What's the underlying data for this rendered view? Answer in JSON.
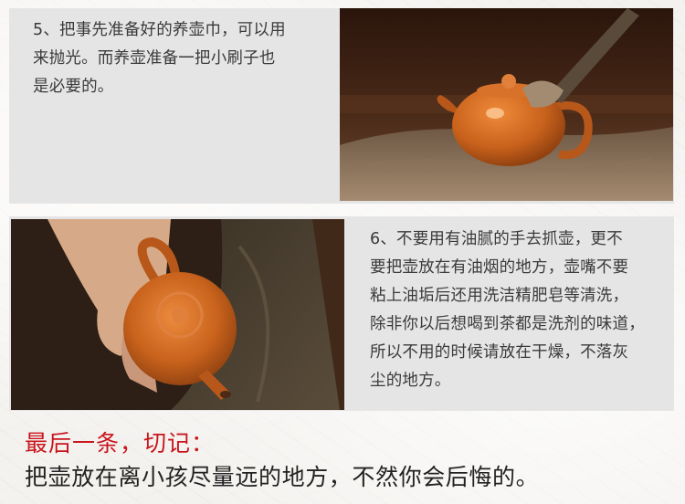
{
  "step5": {
    "lines": [
      "5、把事先准备好的养壶巾，可以用",
      "来抛光。而养壶准备一把小刷子也",
      "是必要的。"
    ]
  },
  "step6": {
    "lines": [
      "6、不要用有油腻的手去抓壶，更不",
      "要把壶放在有油烟的地方，壶嘴不要",
      "粘上油垢后还用洗洁精肥皂等清洗，",
      "除非你以后想喝到茶都是洗剂的味道，",
      "所以不用的时候请放在干燥，不落灰",
      "尘的地方。"
    ]
  },
  "final": {
    "title": "最后一条，切记：",
    "text": "把壶放在离小孩尽量远的地方，不然你会后悔的。"
  },
  "colors": {
    "accent_red": "#c8161d",
    "teapot_orange": "#c8621c",
    "panel_gray": "#e6e5e5"
  }
}
